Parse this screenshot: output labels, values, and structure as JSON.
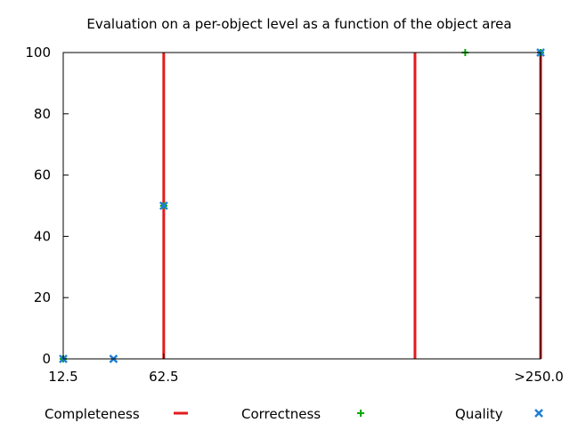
{
  "chart_data": {
    "type": "scatter",
    "title": "Evaluation on a per-object level as a function of the object area",
    "xlabel": "",
    "ylabel": "",
    "x_tick_labels": [
      {
        "x": 12.5,
        "label": "12.5"
      },
      {
        "x": 62.5,
        "label": "62.5"
      },
      {
        "x": 250.0,
        "label": ">250.0"
      }
    ],
    "y_ticks": [
      0,
      20,
      40,
      60,
      80,
      100
    ],
    "xlim": [
      12.5,
      250.0
    ],
    "ylim": [
      0,
      100
    ],
    "grid": false,
    "legend_position": "bottom",
    "series": [
      {
        "name": "Completeness",
        "style": "impulses",
        "color": "#e41a1c",
        "points": [
          [
            62.5,
            100
          ],
          [
            187.5,
            100
          ],
          [
            250.0,
            100
          ]
        ]
      },
      {
        "name": "Correctness",
        "style": "plus",
        "color": "#00aa00",
        "points": [
          [
            12.5,
            0
          ],
          [
            62.5,
            50
          ],
          [
            212.5,
            100
          ],
          [
            250.0,
            100
          ]
        ]
      },
      {
        "name": "Quality",
        "style": "cross",
        "color": "#1f7fd4",
        "points": [
          [
            12.5,
            0
          ],
          [
            37.5,
            0
          ],
          [
            62.5,
            50
          ],
          [
            250.0,
            100
          ]
        ]
      }
    ]
  }
}
